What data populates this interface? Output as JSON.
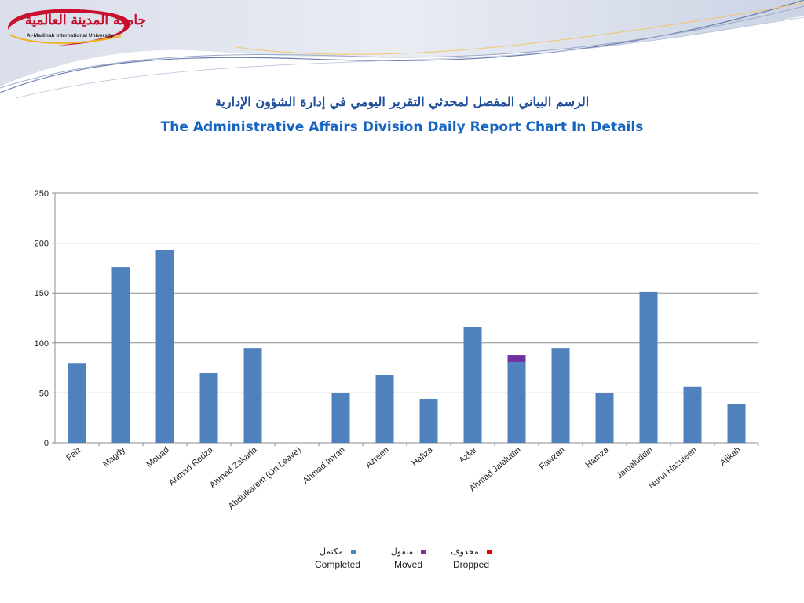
{
  "header": {
    "logo_ar": "جامعة المدينة العالمية",
    "logo_en": "Al-Madinah International University",
    "title_ar": "الرسم البياني المفصل لمحدثي التقرير اليومي في إدارة الشؤون الإدارية",
    "title_en": "The Administrative Affairs Division Daily Report Chart In Details"
  },
  "colors": {
    "completed": "#4f81bd",
    "moved": "#7030a0",
    "dropped": "#e00000",
    "title": "#1565c0"
  },
  "chart_data": {
    "type": "bar",
    "stacked": true,
    "title": "The Administrative Affairs Division Daily Report Chart In Details",
    "categories": [
      "Faiz",
      "Magdy",
      "Mouad",
      "Ahmad Redza",
      "Ahmad Zakaria",
      "Abdulkarem (On Leave)",
      "Ahmad Imran",
      "Azreen",
      "Hafiza",
      "Azfar",
      "Ahmad Jalaludin",
      "Fawzan",
      "Hamza",
      "Jamaluddin",
      "Nurul Hazuieen",
      "Atikah"
    ],
    "series": [
      {
        "name": "Completed",
        "name_ar": "مكتمل",
        "values": [
          80,
          176,
          193,
          70,
          95,
          0,
          50,
          68,
          44,
          116,
          81,
          95,
          50,
          151,
          56,
          39
        ]
      },
      {
        "name": "Moved",
        "name_ar": "منقول",
        "values": [
          0,
          0,
          0,
          0,
          0,
          0,
          0,
          0,
          0,
          0,
          7,
          0,
          0,
          0,
          0,
          0
        ]
      },
      {
        "name": "Dropped",
        "name_ar": "محذوف",
        "values": [
          0,
          0,
          0,
          0,
          0,
          0,
          0,
          0,
          0,
          0,
          0,
          0,
          0,
          0,
          0,
          0
        ]
      }
    ],
    "ylim": [
      0,
      250
    ],
    "yticks": [
      "0",
      "50",
      "100",
      "150",
      "200",
      "250"
    ],
    "grid": true,
    "legend": "bottom-center"
  }
}
